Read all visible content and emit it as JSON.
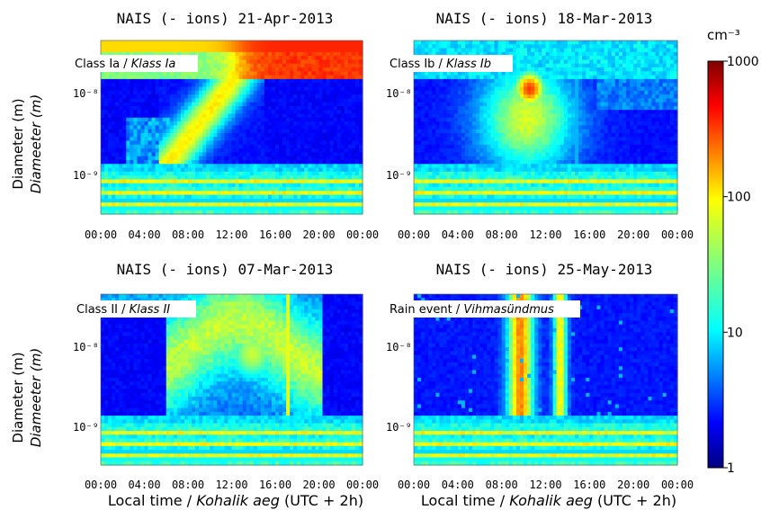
{
  "chart_data": [
    {
      "type": "heatmap",
      "title": "NAIS (- ions) 21-Apr-2013",
      "label_prefix": "Class Ia / ",
      "label_italic": "Klass Ia",
      "event": "growth",
      "ylabel": "Diameter (m)",
      "ylabel_italic": "Diameeter (m)",
      "yticks": [
        "10⁻⁸",
        "10⁻⁹"
      ],
      "xticks": [
        "00:00",
        "04:00",
        "08:00",
        "12:00",
        "16:00",
        "20:00",
        "00:00"
      ],
      "xlabel": ""
    },
    {
      "type": "heatmap",
      "title": "NAIS (- ions) 18-Mar-2013",
      "label_prefix": "Class Ib / ",
      "label_italic": "Klass Ib",
      "event": "burst",
      "ylabel": "",
      "ylabel_italic": "",
      "yticks": [
        "10⁻⁸",
        "10⁻⁹"
      ],
      "xticks": [
        "00:00",
        "04:00",
        "08:00",
        "12:00",
        "16:00",
        "20:00",
        "00:00"
      ],
      "xlabel": ""
    },
    {
      "type": "heatmap",
      "title": "NAIS (- ions) 07-Mar-2013",
      "label_prefix": "Class II / ",
      "label_italic": "Klass II",
      "event": "weak",
      "ylabel": "Diameter (m)",
      "ylabel_italic": "Diameeter (m)",
      "yticks": [
        "10⁻⁸",
        "10⁻⁹"
      ],
      "xticks": [
        "00:00",
        "04:00",
        "08:00",
        "12:00",
        "16:00",
        "20:00",
        "00:00"
      ],
      "xlabel": "Local time / ",
      "xlabel_italic": "Kohalik aeg",
      "xlabel_suffix": " (UTC + 2h)"
    },
    {
      "type": "heatmap",
      "title": "NAIS (- ions) 25-May-2013",
      "label_prefix": "Rain event / ",
      "label_italic": "Vihmasündmus",
      "event": "rain",
      "ylabel": "",
      "ylabel_italic": "",
      "yticks": [
        "10⁻⁸",
        "10⁻⁹"
      ],
      "xticks": [
        "00:00",
        "04:00",
        "08:00",
        "12:00",
        "16:00",
        "20:00",
        "00:00"
      ],
      "xlabel": "Local time / ",
      "xlabel_italic": "Kohalik aeg",
      "xlabel_suffix": " (UTC + 2h)"
    }
  ],
  "colorbar": {
    "unit": "cm⁻³",
    "scale": "log",
    "range": [
      1,
      1000
    ],
    "ticks": [
      "1000",
      "100",
      "10",
      "1"
    ],
    "colormap": "jet"
  }
}
